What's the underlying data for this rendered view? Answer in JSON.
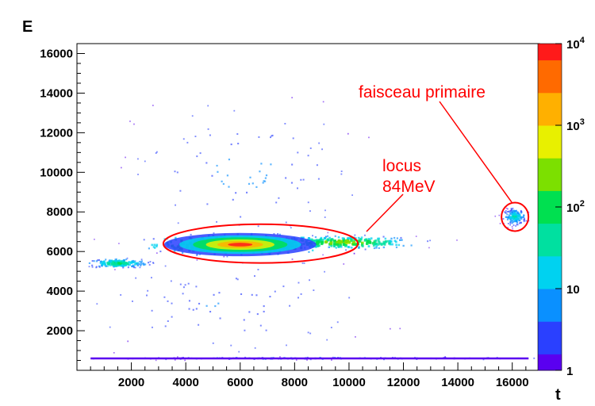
{
  "chart_data": {
    "type": "heatmap",
    "title": "",
    "xlabel": "t",
    "ylabel": "E",
    "xlim": [
      0,
      17000
    ],
    "ylim": [
      0,
      16500
    ],
    "x_ticks": [
      2000,
      4000,
      6000,
      8000,
      10000,
      12000,
      14000,
      16000
    ],
    "y_ticks": [
      2000,
      4000,
      6000,
      8000,
      10000,
      12000,
      14000,
      16000
    ],
    "z_scale": "log",
    "zlim": [
      1,
      10000
    ],
    "colorbar_ticks": [
      {
        "value": 1,
        "label": "1"
      },
      {
        "value": 10,
        "label": "10"
      },
      {
        "value": 100,
        "label": "10",
        "sup": "2"
      },
      {
        "value": 1000,
        "label": "10",
        "sup": "3"
      },
      {
        "value": 10000,
        "label": "10",
        "sup": "4"
      }
    ],
    "palette": [
      "#5a00f0",
      "#2a40ff",
      "#0a90ff",
      "#00d2f0",
      "#00e0a0",
      "#00e050",
      "#7ce000",
      "#e8f000",
      "#ffb000",
      "#ff6a00",
      "#ff1a1a"
    ],
    "regions": [
      {
        "name": "locus 84MeV core",
        "cx": 6000,
        "cy": 6350,
        "rx": 2800,
        "ry": 420,
        "level": 3.6
      },
      {
        "name": "locus tail",
        "cx": 9800,
        "cy": 6450,
        "rx": 2400,
        "ry": 280,
        "level": 2.2
      },
      {
        "name": "low band",
        "cx": 1500,
        "cy": 5400,
        "rx": 1000,
        "ry": 200,
        "level": 1.6
      },
      {
        "name": "upper cloud",
        "cx": 6200,
        "cy": 10000,
        "rx": 3700,
        "ry": 3200,
        "level": 0.6
      },
      {
        "name": "lower cloud",
        "cx": 5600,
        "cy": 3300,
        "rx": 5000,
        "ry": 2300,
        "level": 0.55
      },
      {
        "name": "faisceau primaire spot",
        "cx": 16100,
        "cy": 7750,
        "rx": 350,
        "ry": 350,
        "level": 1.3
      },
      {
        "name": "baseline row",
        "cx": 8500,
        "cy": 600,
        "rx": 8000,
        "ry": 60,
        "level": 0.8
      }
    ],
    "annotations": [
      {
        "text_lines": [
          "locus",
          "84MeV"
        ],
        "ellipse": {
          "cx": 6750,
          "cy": 6400,
          "rx": 7150,
          "ry": 850
        }
      },
      {
        "text_lines": [
          "faisceau primaire"
        ],
        "ellipse": {
          "cx": 16100,
          "cy": 7750,
          "rx": 550,
          "ry": 550
        }
      }
    ],
    "grid": false,
    "legend": "colorbar-right"
  }
}
